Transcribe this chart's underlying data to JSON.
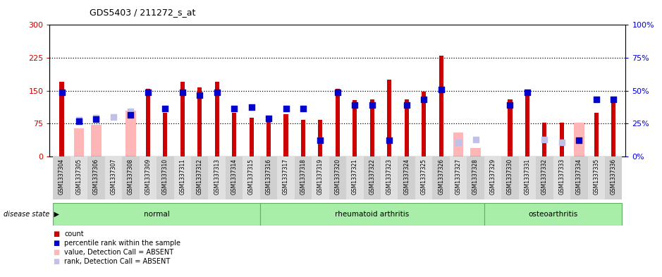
{
  "title": "GDS5403 / 211272_s_at",
  "samples": [
    "GSM1337304",
    "GSM1337305",
    "GSM1337306",
    "GSM1337307",
    "GSM1337308",
    "GSM1337309",
    "GSM1337310",
    "GSM1337311",
    "GSM1337312",
    "GSM1337313",
    "GSM1337314",
    "GSM1337315",
    "GSM1337316",
    "GSM1337317",
    "GSM1337318",
    "GSM1337319",
    "GSM1337320",
    "GSM1337321",
    "GSM1337322",
    "GSM1337323",
    "GSM1337324",
    "GSM1337325",
    "GSM1337326",
    "GSM1337327",
    "GSM1337328",
    "GSM1337329",
    "GSM1337330",
    "GSM1337331",
    "GSM1337332",
    "GSM1337333",
    "GSM1337334",
    "GSM1337335",
    "GSM1337336"
  ],
  "red_bars": [
    170,
    0,
    0,
    0,
    0,
    155,
    100,
    170,
    157,
    170,
    100,
    88,
    83,
    97,
    83,
    83,
    155,
    128,
    130,
    175,
    130,
    148,
    230,
    0,
    0,
    0,
    130,
    150,
    77,
    77,
    0,
    100,
    137
  ],
  "pink_bars": [
    0,
    65,
    72,
    0,
    105,
    0,
    0,
    0,
    0,
    0,
    0,
    0,
    0,
    0,
    0,
    0,
    0,
    0,
    0,
    0,
    0,
    0,
    0,
    55,
    20,
    0,
    0,
    0,
    0,
    0,
    77,
    0,
    0
  ],
  "blue_squares": [
    147,
    80,
    85,
    0,
    95,
    147,
    110,
    147,
    140,
    147,
    110,
    113,
    87,
    110,
    110,
    37,
    147,
    117,
    117,
    37,
    117,
    130,
    153,
    0,
    0,
    0,
    117,
    147,
    0,
    0,
    37,
    130,
    130
  ],
  "lavender_squares": [
    0,
    83,
    88,
    90,
    103,
    0,
    0,
    0,
    0,
    0,
    0,
    0,
    0,
    0,
    0,
    37,
    0,
    0,
    0,
    0,
    0,
    0,
    0,
    33,
    38,
    0,
    0,
    0,
    38,
    33,
    0,
    0,
    0
  ],
  "group_boundaries": [
    0,
    12,
    25,
    33
  ],
  "group_labels": [
    "normal",
    "rheumatoid arthritis",
    "osteoarthritis"
  ],
  "ylim_left": [
    0,
    300
  ],
  "ylim_right": [
    0,
    100
  ],
  "yticks_left": [
    0,
    75,
    150,
    225,
    300
  ],
  "yticks_right": [
    0,
    25,
    50,
    75,
    100
  ],
  "hlines": [
    75,
    150,
    225
  ],
  "red_color": "#cc0000",
  "pink_color": "#ffb6b6",
  "blue_color": "#0000cc",
  "lavender_color": "#c0c0e8",
  "plot_bg": "#ffffff",
  "tick_area_bg": "#d8d8d8",
  "green_light": "#a8eea8",
  "green_border": "#60b060",
  "legend_items": [
    [
      "#cc0000",
      "count"
    ],
    [
      "#0000cc",
      "percentile rank within the sample"
    ],
    [
      "#ffb6b6",
      "value, Detection Call = ABSENT"
    ],
    [
      "#c0c0e8",
      "rank, Detection Call = ABSENT"
    ]
  ]
}
